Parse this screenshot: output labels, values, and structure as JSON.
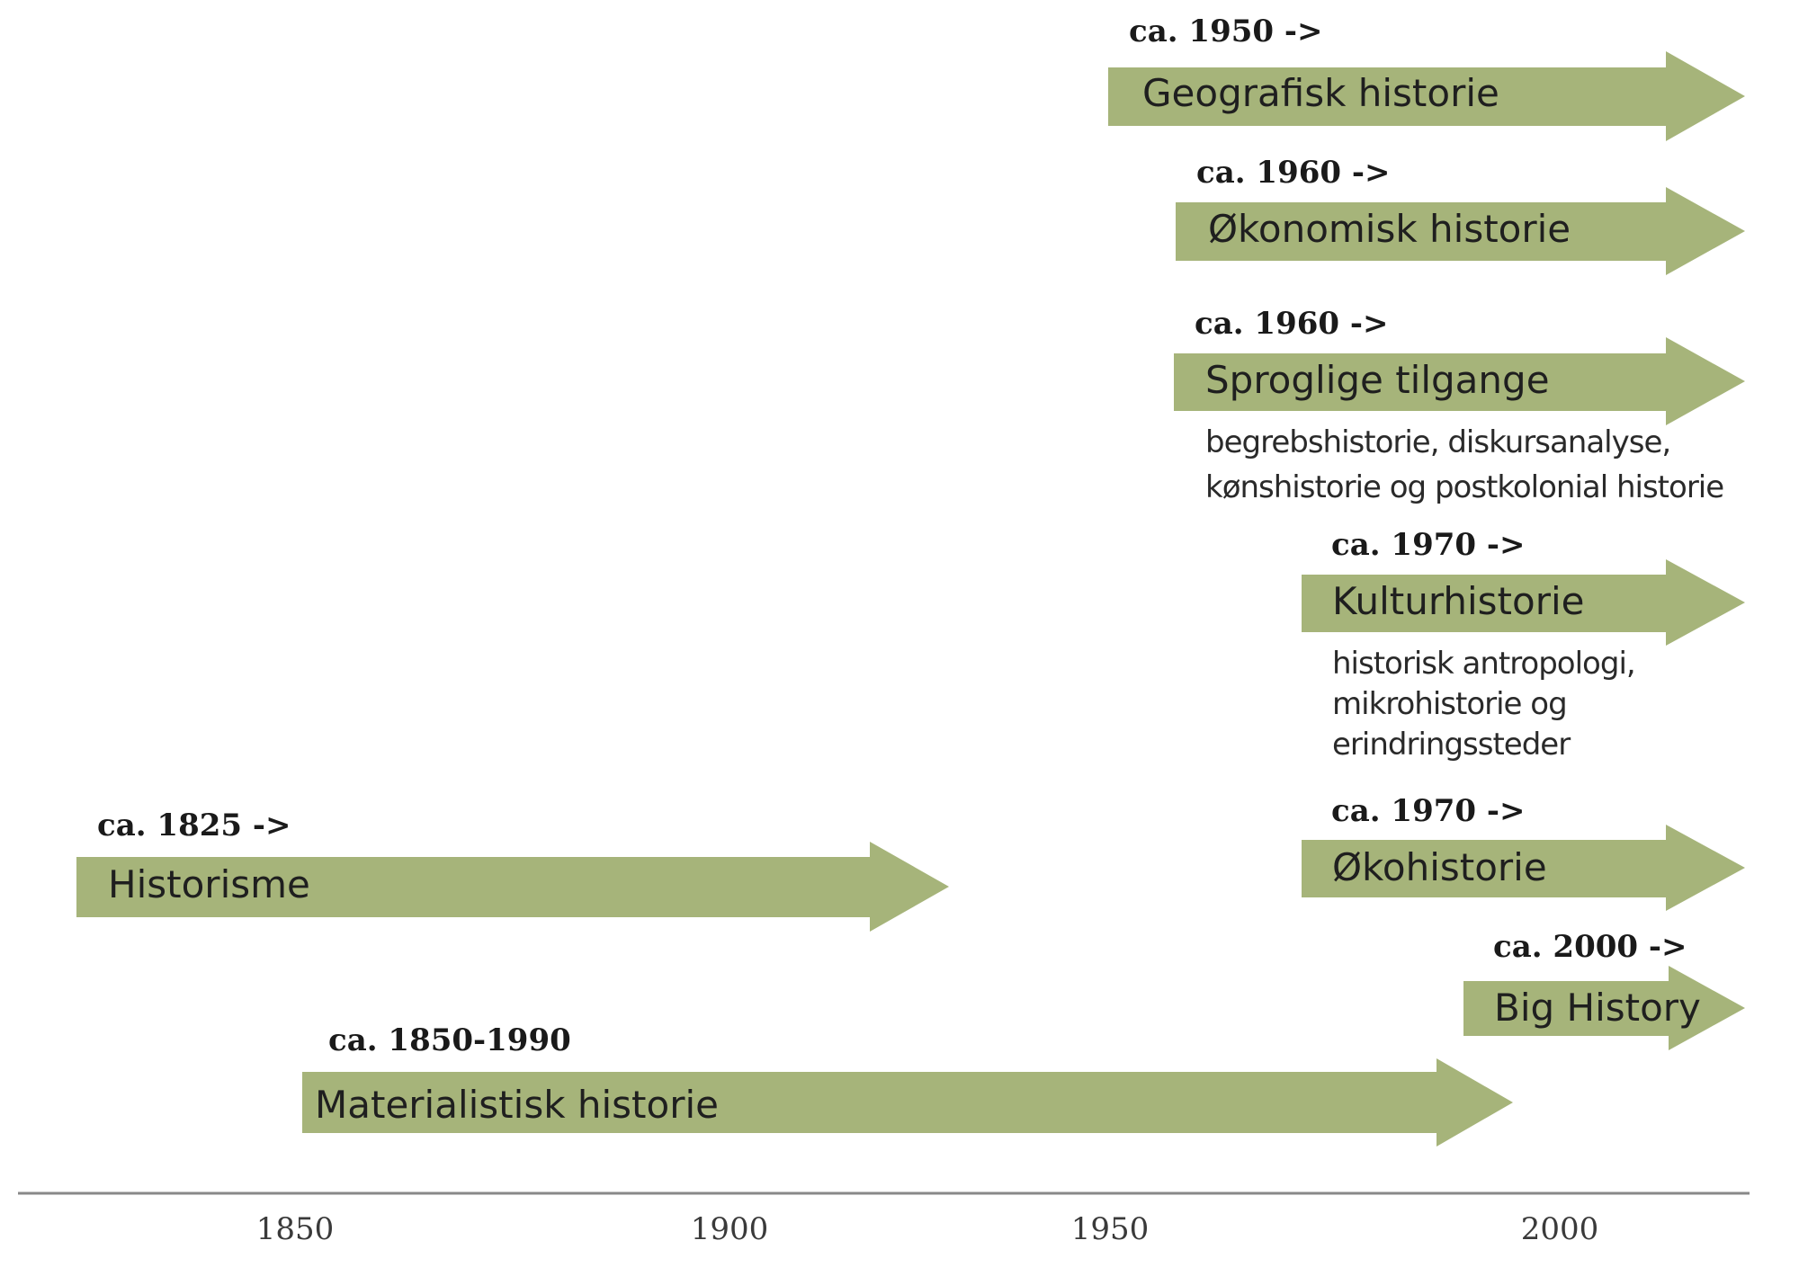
{
  "colors": {
    "arrow_fill": "#a6b47a",
    "axis_line": "#888888"
  },
  "diagram": {
    "streams": [
      {
        "id": "geografisk",
        "period": "ca. 1950 ->",
        "name": "Geografisk historie",
        "sublines": []
      },
      {
        "id": "okonomisk",
        "period": "ca. 1960 ->",
        "name": "Økonomisk historie",
        "sublines": []
      },
      {
        "id": "sproglige",
        "period": "ca. 1960 ->",
        "name": "Sproglige tilgange",
        "sublines": [
          "begrebshistorie, diskursanalyse,",
          "kønshistorie og postkolonial historie"
        ]
      },
      {
        "id": "kultur",
        "period": "ca. 1970 ->",
        "name": "Kulturhistorie",
        "sublines": [
          "historisk antropologi,",
          "mikrohistorie og",
          "erindringssteder"
        ]
      },
      {
        "id": "oko",
        "period": "ca. 1970 ->",
        "name": "Økohistorie",
        "sublines": []
      },
      {
        "id": "bighistory",
        "period": "ca. 2000 ->",
        "name": "Big History",
        "sublines": []
      },
      {
        "id": "historisme",
        "period": "ca. 1825 ->",
        "name": "Historisme",
        "sublines": []
      },
      {
        "id": "materialistisk",
        "period": "ca. 1850-1990",
        "name": "Materialistisk historie",
        "sublines": []
      }
    ],
    "axis": {
      "ticks": [
        "1850",
        "1900",
        "1950",
        "2000"
      ]
    }
  }
}
